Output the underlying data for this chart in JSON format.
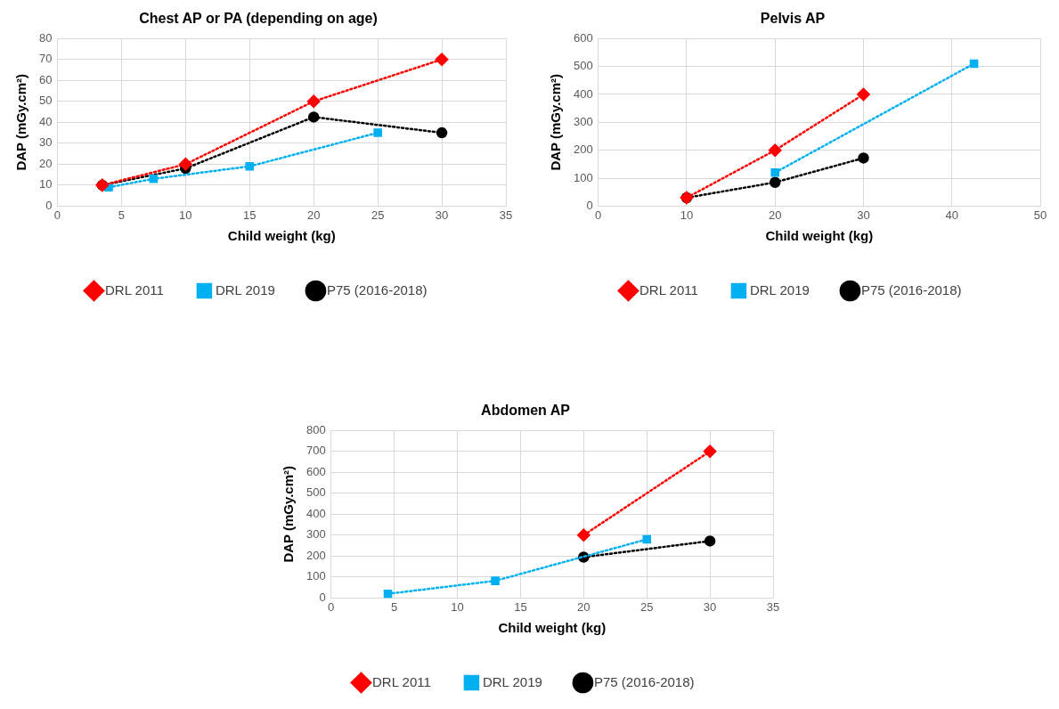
{
  "chart_data": [
    {
      "type": "line",
      "title": "Chest AP or PA (depending on age)",
      "xlabel": "Child weight (kg)",
      "ylabel": "DAP (mGy.cm²)",
      "xlim": [
        0,
        35
      ],
      "xticks": [
        0,
        5,
        10,
        15,
        20,
        25,
        30,
        35
      ],
      "ylim": [
        0,
        80
      ],
      "yticks": [
        0,
        10,
        20,
        30,
        40,
        50,
        60,
        70,
        80
      ],
      "grid": true,
      "legend": "bottom",
      "line_style": "dotted",
      "series": [
        {
          "name": "DRL 2011",
          "color": "#ff0000",
          "marker": "diamond",
          "x": [
            3.5,
            10,
            20,
            30
          ],
          "values": [
            10,
            20,
            50,
            70
          ]
        },
        {
          "name": "DRL 2019",
          "color": "#00b0f0",
          "marker": "square",
          "x": [
            4,
            7.5,
            15,
            25
          ],
          "values": [
            9,
            13,
            19,
            35
          ]
        },
        {
          "name": "P75 (2016-2018)",
          "color": "#000000",
          "marker": "circle",
          "x": [
            3.5,
            10,
            20,
            30
          ],
          "values": [
            10,
            18,
            42.5,
            35
          ]
        }
      ]
    },
    {
      "type": "line",
      "title": "Pelvis AP",
      "xlabel": "Child weight (kg)",
      "ylabel": "DAP (mGy.cm²)",
      "xlim": [
        0,
        50
      ],
      "xticks": [
        0,
        10,
        20,
        30,
        40,
        50
      ],
      "ylim": [
        0,
        600
      ],
      "yticks": [
        0,
        100,
        200,
        300,
        400,
        500,
        600
      ],
      "grid": true,
      "legend": "bottom",
      "line_style": "dotted",
      "series": [
        {
          "name": "DRL 2011",
          "color": "#ff0000",
          "marker": "diamond",
          "x": [
            10,
            20,
            30
          ],
          "values": [
            30,
            200,
            400
          ]
        },
        {
          "name": "DRL 2019",
          "color": "#00b0f0",
          "marker": "square",
          "x": [
            20,
            42.5
          ],
          "values": [
            120,
            510
          ]
        },
        {
          "name": "P75 (2016-2018)",
          "color": "#000000",
          "marker": "circle",
          "x": [
            10,
            20,
            30
          ],
          "values": [
            30,
            85,
            172
          ]
        }
      ]
    },
    {
      "type": "line",
      "title": "Abdomen AP",
      "xlabel": "Child weight (kg)",
      "ylabel": "DAP (mGy.cm²)",
      "xlim": [
        0,
        35
      ],
      "xticks": [
        0,
        5,
        10,
        15,
        20,
        25,
        30,
        35
      ],
      "ylim": [
        0,
        800
      ],
      "yticks": [
        0,
        100,
        200,
        300,
        400,
        500,
        600,
        700,
        800
      ],
      "grid": true,
      "legend": "bottom",
      "line_style": "dotted",
      "series": [
        {
          "name": "DRL 2011",
          "color": "#ff0000",
          "marker": "diamond",
          "x": [
            20,
            30
          ],
          "values": [
            300,
            700
          ]
        },
        {
          "name": "DRL 2019",
          "color": "#00b0f0",
          "marker": "square",
          "x": [
            4.5,
            13,
            25
          ],
          "values": [
            20,
            82,
            280
          ]
        },
        {
          "name": "P75 (2016-2018)",
          "color": "#000000",
          "marker": "circle",
          "x": [
            20,
            30
          ],
          "values": [
            195,
            272
          ]
        }
      ]
    }
  ]
}
